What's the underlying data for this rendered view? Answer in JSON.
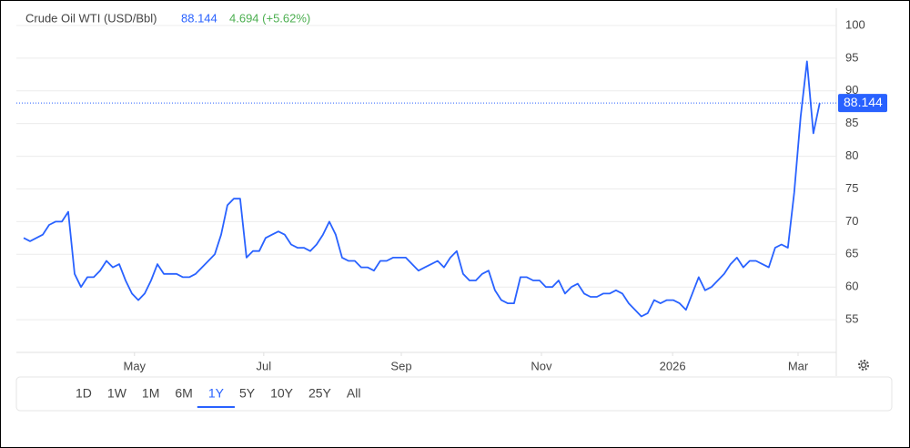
{
  "chart_data": {
    "type": "line",
    "title": "Crude Oil WTI (USD/Bbl)",
    "change_label": "4.694 (+5.62%)",
    "values": [
      67.5,
      67,
      67.5,
      68,
      69.5,
      70,
      70,
      71.5,
      62,
      60,
      61.5,
      61.5,
      62.5,
      64,
      63,
      63.5,
      61,
      59,
      58,
      59,
      61,
      63.5,
      62,
      62,
      62,
      61.5,
      61.5,
      62,
      63,
      64,
      65,
      68,
      72.5,
      73.5,
      73.5,
      64.5,
      65.5,
      65.5,
      67.5,
      68,
      68.5,
      68,
      66.5,
      66,
      66,
      65.5,
      66.5,
      68,
      70,
      68,
      64.5,
      64,
      64,
      63,
      63,
      62.5,
      64,
      64,
      64.5,
      64.5,
      64.5,
      63.5,
      62.5,
      63,
      63.5,
      64,
      63,
      64.5,
      65.5,
      62,
      61,
      61,
      62,
      62.5,
      59.5,
      58,
      57.5,
      57.5,
      61.5,
      61.5,
      61,
      61,
      60,
      60,
      61,
      59,
      60,
      60.5,
      59,
      58.5,
      58.5,
      59,
      59,
      59.5,
      59,
      57.5,
      56.5,
      55.5,
      56,
      58,
      57.5,
      58,
      58,
      57.5,
      56.5,
      59,
      61.5,
      59.5,
      60,
      61,
      62,
      63.5,
      64.5,
      63,
      64,
      64,
      63.5,
      63,
      66,
      66.5,
      66,
      74.5,
      86,
      94.5,
      83.5,
      88.144
    ],
    "color": "#2962ff",
    "xlim": [
      0,
      127.6
    ],
    "xticks": [
      {
        "value": 17.4,
        "label": "May"
      },
      {
        "value": 37.7,
        "label": "Jul"
      },
      {
        "value": 59.3,
        "label": "Sep"
      },
      {
        "value": 81.3,
        "label": "Nov"
      },
      {
        "value": 101.9,
        "label": "2026"
      },
      {
        "value": 121.6,
        "label": "Mar"
      }
    ],
    "ylim": [
      50,
      102.5
    ],
    "yticks": [
      55,
      60,
      65,
      70,
      75,
      80,
      85,
      90,
      95,
      100
    ],
    "grid": true,
    "range_buttons": [
      "1D",
      "1W",
      "1M",
      "6M",
      "1Y",
      "5Y",
      "10Y",
      "25Y",
      "All"
    ],
    "selected_range": "1Y"
  }
}
